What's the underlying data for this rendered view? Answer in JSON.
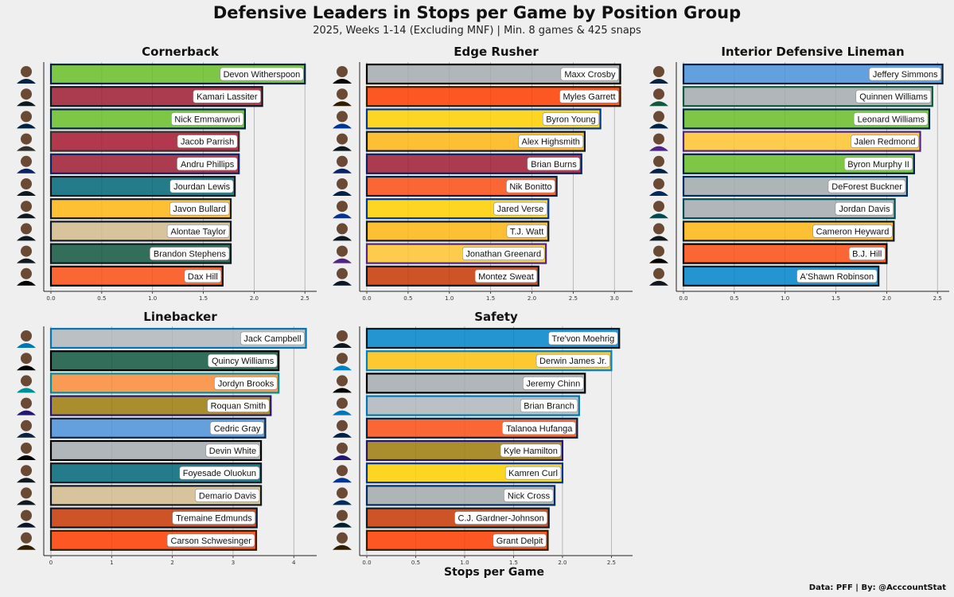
{
  "title": "Defensive Leaders in Stops per Game by Position Group",
  "subtitle": "2025, Weeks 1-14 (Excluding MNF) | Min. 8 games & 425 snaps",
  "footer": "Data: PFF | By: @AcccountStat",
  "chart_data": [
    {
      "type": "bar",
      "orientation": "horizontal",
      "title": "Cornerback",
      "xlabel": "",
      "xlim": [
        0,
        2.6
      ],
      "ticks": [
        0.0,
        0.5,
        1.0,
        1.5,
        2.0,
        2.5
      ],
      "tick_labels": [
        "0.0",
        "0.5",
        "1.0",
        "1.5",
        "2.0",
        "2.5"
      ],
      "categories": [
        "Devon Witherspoon",
        "Kamari Lassiter",
        "Nick Emmanwori",
        "Jacob Parrish",
        "Andru Phillips",
        "Jourdan Lewis",
        "Javon Bullard",
        "Alontae Taylor",
        "Brandon Stephens",
        "Dax Hill"
      ],
      "values": [
        2.5,
        2.08,
        1.91,
        1.85,
        1.85,
        1.81,
        1.77,
        1.77,
        1.77,
        1.69
      ],
      "colors": [
        "#69be28",
        "#9f1b32",
        "#69be28",
        "#a71930",
        "#9f1b32",
        "#006778",
        "#ffb612",
        "#d3bc8d",
        "#125740",
        "#fb4f14"
      ],
      "edge_colors": [
        "#002244",
        "#101820",
        "#002244",
        "#34302b",
        "#0b2265",
        "#101820",
        "#101820",
        "#101820",
        "#101820",
        "#000000"
      ]
    },
    {
      "type": "bar",
      "orientation": "horizontal",
      "title": "Edge Rusher",
      "xlabel": "",
      "xlim": [
        0,
        3.2
      ],
      "ticks": [
        0.0,
        0.5,
        1.0,
        1.5,
        2.0,
        2.5,
        3.0
      ],
      "tick_labels": [
        "0.0",
        "0.5",
        "1.0",
        "1.5",
        "2.0",
        "2.5",
        "3.0"
      ],
      "categories": [
        "Maxx Crosby",
        "Myles Garrett",
        "Byron Young",
        "Alex Highsmith",
        "Brian Burns",
        "Nik Bonitto",
        "Jared Verse",
        "T.J. Watt",
        "Jonathan Greenard",
        "Montez Sweat"
      ],
      "values": [
        3.07,
        3.07,
        2.83,
        2.64,
        2.6,
        2.3,
        2.2,
        2.2,
        2.17,
        2.08
      ],
      "colors": [
        "#a5acaf",
        "#ff3c00",
        "#ffd100",
        "#ffb612",
        "#9f1b32",
        "#fb4f14",
        "#ffd100",
        "#ffb612",
        "#ffc62f",
        "#c83803"
      ],
      "edge_colors": [
        "#000000",
        "#311d00",
        "#003594",
        "#101820",
        "#0b2265",
        "#002244",
        "#003594",
        "#101820",
        "#4f2683",
        "#0b162a"
      ]
    },
    {
      "type": "bar",
      "orientation": "horizontal",
      "title": "Interior Defensive Lineman",
      "xlabel": "",
      "xlim": [
        0,
        2.6
      ],
      "ticks": [
        0.0,
        0.5,
        1.0,
        1.5,
        2.0,
        2.5
      ],
      "tick_labels": [
        "0.0",
        "0.5",
        "1.0",
        "1.5",
        "2.0",
        "2.5"
      ],
      "categories": [
        "Jeffery Simmons",
        "Quinnen Williams",
        "Leonard Williams",
        "Jalen Redmond",
        "Byron Murphy II",
        "DeForest Buckner",
        "Jordan Davis",
        "Cameron Heyward",
        "B.J. Hill",
        "A'Shawn Robinson"
      ],
      "values": [
        2.55,
        2.45,
        2.42,
        2.33,
        2.27,
        2.2,
        2.08,
        2.07,
        2.0,
        1.92
      ],
      "colors": [
        "#4b92db",
        "#a5acaf",
        "#69be28",
        "#ffc62f",
        "#69be28",
        "#a2aaad",
        "#a5acaf",
        "#ffb612",
        "#fb4f14",
        "#0085ca"
      ],
      "edge_colors": [
        "#0c2340",
        "#125740",
        "#002244",
        "#4f2683",
        "#002244",
        "#002c5f",
        "#004c54",
        "#101820",
        "#000000",
        "#101820"
      ]
    },
    {
      "type": "bar",
      "orientation": "horizontal",
      "title": "Linebacker",
      "xlabel": "",
      "xlim": [
        0,
        4.35
      ],
      "ticks": [
        0,
        1,
        2,
        3,
        4
      ],
      "tick_labels": [
        "0",
        "1",
        "2",
        "3",
        "4"
      ],
      "categories": [
        "Jack Campbell",
        "Quincy Williams",
        "Jordyn Brooks",
        "Roquan Smith",
        "Cedric Gray",
        "Devin White",
        "Foyesade Oluokun",
        "Demario Davis",
        "Tremaine Edmunds",
        "Carson Schwesinger"
      ],
      "values": [
        4.2,
        3.75,
        3.75,
        3.62,
        3.53,
        3.46,
        3.46,
        3.46,
        3.39,
        3.38
      ],
      "colors": [
        "#b0b7bc",
        "#125740",
        "#fc8c3a",
        "#9e7c0c",
        "#4b92db",
        "#a5acaf",
        "#006778",
        "#d3bc8d",
        "#c83803",
        "#ff3c00"
      ],
      "edge_colors": [
        "#0076b6",
        "#000000",
        "#008e97",
        "#241773",
        "#0c2340",
        "#000000",
        "#101820",
        "#101820",
        "#0b162a",
        "#311d00"
      ]
    },
    {
      "type": "bar",
      "orientation": "horizontal",
      "title": "Safety",
      "xlabel": "Stops per Game",
      "xlim": [
        0,
        2.7
      ],
      "ticks": [
        0.0,
        0.5,
        1.0,
        1.5,
        2.0,
        2.5
      ],
      "tick_labels": [
        "0.0",
        "0.5",
        "1.0",
        "1.5",
        "2.0",
        "2.5"
      ],
      "categories": [
        "Tre'von Moehrig",
        "Derwin James Jr.",
        "Jeremy Chinn",
        "Brian Branch",
        "Talanoa Hufanga",
        "Kyle Hamilton",
        "Kamren Curl",
        "Nick Cross",
        "C.J. Gardner-Johnson",
        "Grant Delpit"
      ],
      "values": [
        2.58,
        2.5,
        2.23,
        2.17,
        2.15,
        2.0,
        2.0,
        1.92,
        1.86,
        1.85
      ],
      "colors": [
        "#0085ca",
        "#ffc20e",
        "#a5acaf",
        "#b0b7bc",
        "#fb4f14",
        "#9e7c0c",
        "#ffd100",
        "#a2aaad",
        "#c83803",
        "#ff3c00"
      ],
      "edge_colors": [
        "#101820",
        "#0080c6",
        "#000000",
        "#0076b6",
        "#002244",
        "#241773",
        "#003594",
        "#002c5f",
        "#03202f",
        "#311d00"
      ]
    }
  ]
}
